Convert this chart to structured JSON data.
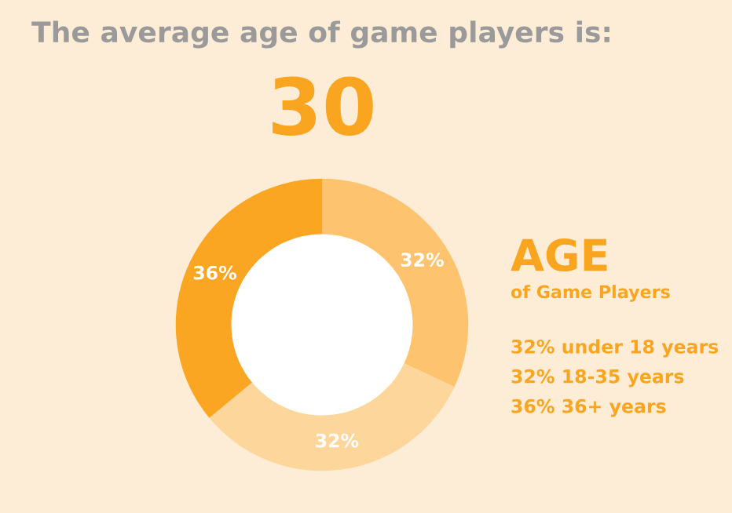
{
  "chart_data": {
    "type": "donut",
    "title": "The average age of game players is:",
    "subtitle": "30",
    "categories": [
      null,
      null,
      null
    ],
    "values": [
      32,
      32,
      36
    ],
    "colors": [
      "#fec36e",
      "#fdd69c",
      "#fba623"
    ],
    "value_labels": [
      "32%",
      "32%",
      "36%"
    ],
    "legend_title": "AGE",
    "annotations": [
      "of Game Players",
      "32% under 18 years",
      "32% 18-35 years",
      "36% 36+ years"
    ]
  }
}
